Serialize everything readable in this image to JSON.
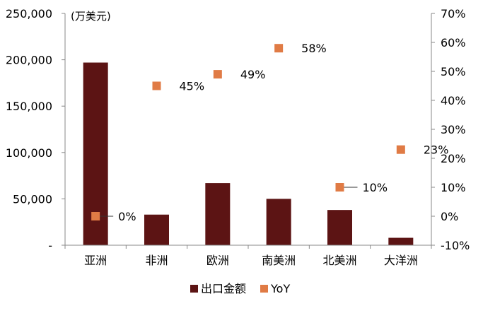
{
  "chart_data": {
    "type": "bar",
    "unit_label": "(万美元)",
    "categories": [
      "亚洲",
      "非洲",
      "欧洲",
      "南美洲",
      "北美洲",
      "大洋洲"
    ],
    "series": [
      {
        "name": "出口金额",
        "type": "bar",
        "axis": "left",
        "color": "#5c1414",
        "values": [
          197000,
          33000,
          67000,
          50000,
          38000,
          8000
        ]
      },
      {
        "name": "YoY",
        "type": "scatter",
        "axis": "right",
        "color": "#e07b45",
        "values": [
          0,
          45,
          49,
          58,
          10,
          23
        ],
        "labels": [
          "0%",
          "45%",
          "49%",
          "58%",
          "10%",
          "23%"
        ]
      }
    ],
    "y_left": {
      "ylim": [
        0,
        250000
      ],
      "ticks": [
        0,
        50000,
        100000,
        150000,
        200000,
        250000
      ],
      "tick_labels": [
        "-",
        "50,000",
        "100,000",
        "150,000",
        "200,000",
        "250,000"
      ]
    },
    "y_right": {
      "ylim": [
        -10,
        70
      ],
      "ticks": [
        -10,
        0,
        10,
        20,
        30,
        40,
        50,
        60,
        70
      ],
      "tick_labels": [
        "-10%",
        "0%",
        "10%",
        "20%",
        "30%",
        "40%",
        "50%",
        "60%",
        "70%"
      ]
    },
    "legend": {
      "position": "bottom",
      "entries": [
        "出口金额",
        "YoY"
      ]
    },
    "grid": false
  }
}
